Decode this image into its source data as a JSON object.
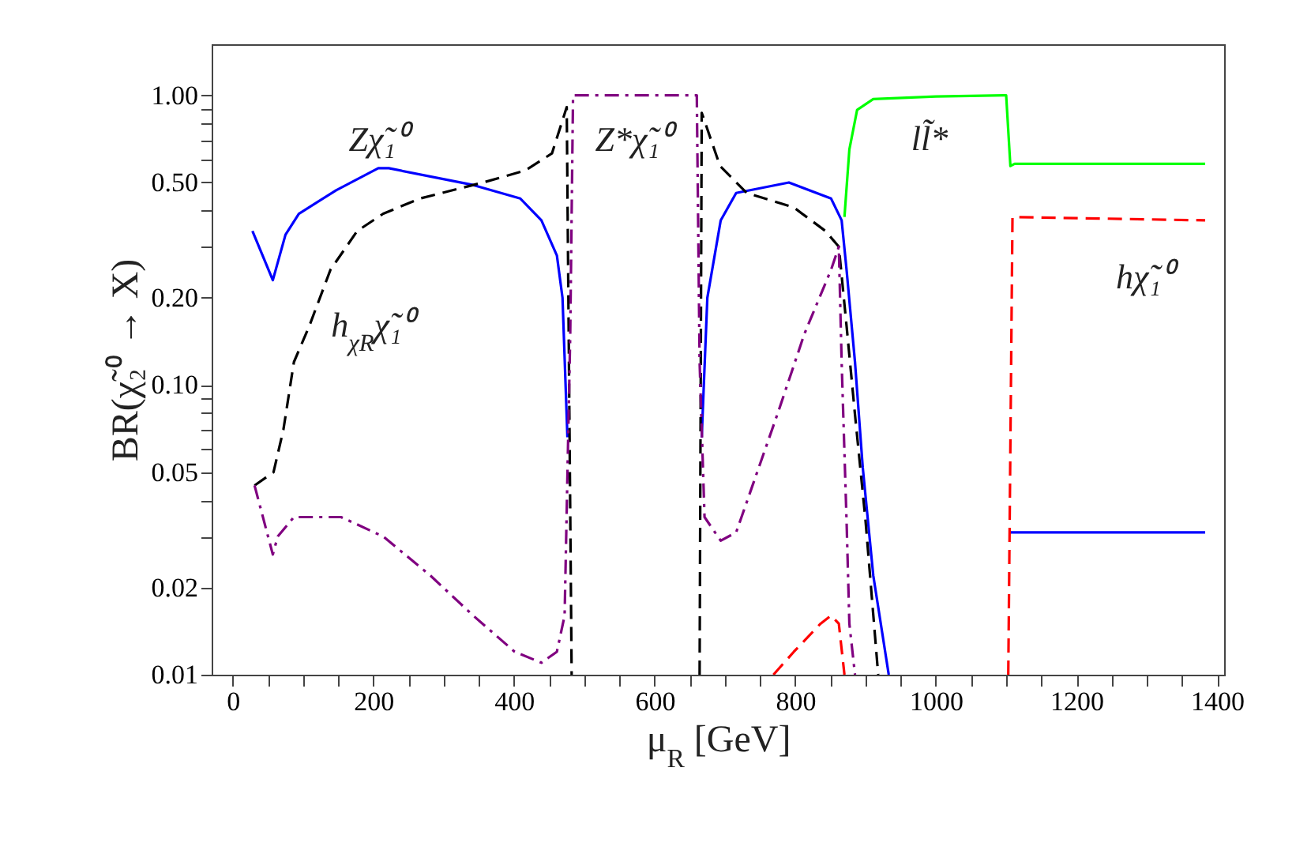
{
  "chart_data": {
    "type": "line",
    "xlabel": "μ$_{R}$ [GeV]",
    "ylabel": "BR(χ̃₂⁰ → X)",
    "log": "y",
    "grid": false,
    "marker": "none",
    "xlim": [
      -30,
      1410
    ],
    "ylim": [
      0.01,
      1.5
    ],
    "xticks": [
      0,
      {
        "value": 50,
        "label": null
      },
      {
        "value": 100,
        "label": null
      },
      {
        "value": 150,
        "label": null
      },
      200,
      {
        "value": 250,
        "label": null
      },
      {
        "value": 300,
        "label": null
      },
      {
        "value": 350,
        "label": null
      },
      400,
      {
        "value": 450,
        "label": null
      },
      {
        "value": 500,
        "label": null
      },
      {
        "value": 550,
        "label": null
      },
      600,
      {
        "value": 650,
        "label": null
      },
      {
        "value": 700,
        "label": null
      },
      {
        "value": 750,
        "label": null
      },
      800,
      {
        "value": 850,
        "label": null
      },
      {
        "value": 900,
        "label": null
      },
      {
        "value": 950,
        "label": null
      },
      1000,
      {
        "value": 1050,
        "label": null
      },
      {
        "value": 1100,
        "label": null
      },
      {
        "value": 1150,
        "label": null
      },
      1200,
      {
        "value": 1250,
        "label": null
      },
      {
        "value": 1300,
        "label": null
      },
      {
        "value": 1350,
        "label": null
      },
      1400
    ],
    "yticks": [
      0.01,
      0.02,
      {
        "value": 0.03,
        "label": null
      },
      {
        "value": 0.04,
        "label": null
      },
      0.05,
      {
        "value": 0.06,
        "label": null
      },
      {
        "value": 0.07,
        "label": null
      },
      {
        "value": 0.08,
        "label": null
      },
      {
        "value": 0.09,
        "label": null
      },
      {
        "value": 0.1,
        "label": "0.10"
      },
      {
        "value": 0.2,
        "label": "0.20"
      },
      {
        "value": 0.3,
        "label": null
      },
      {
        "value": 0.4,
        "label": null
      },
      {
        "value": 0.5,
        "label": "0.50"
      },
      {
        "value": 0.6,
        "label": null
      },
      {
        "value": 0.7,
        "label": null
      },
      {
        "value": 0.8,
        "label": null
      },
      {
        "value": 0.9,
        "label": null
      },
      {
        "value": 1,
        "label": "1.00"
      }
    ],
    "series": [
      {
        "color": "#0000ff",
        "line_style": "solid",
        "x": [
          28,
          57,
          75,
          94,
          147,
          207,
          222,
          342,
          409,
          439,
          461,
          469,
          476,
          570,
          667,
          675,
          694,
          716,
          791,
          851,
          866,
          873,
          885,
          896,
          911,
          933,
          1020,
          1103,
          1105,
          1383
        ],
        "values": [
          0.34,
          0.23,
          0.33,
          0.39,
          0.47,
          0.56,
          0.56,
          0.49,
          0.44,
          0.37,
          0.28,
          0.2,
          0.066,
          null,
          0.066,
          0.2,
          0.37,
          0.46,
          0.5,
          0.44,
          0.37,
          0.25,
          0.12,
          0.052,
          0.022,
          0.01,
          null,
          null,
          0.031,
          0.031
        ]
      },
      {
        "color": "#000000",
        "line_style": "dashed",
        "x": [
          31,
          58,
          72,
          87,
          109,
          139,
          177,
          214,
          266,
          356,
          416,
          454,
          475,
          482,
          570,
          664,
          667,
          693,
          731,
          798,
          843,
          862,
          873,
          885,
          900,
          918
        ],
        "values": [
          0.045,
          0.05,
          0.07,
          0.12,
          0.16,
          0.25,
          0.34,
          0.39,
          0.44,
          0.5,
          0.55,
          0.63,
          0.91,
          0.01,
          null,
          0.01,
          0.87,
          0.57,
          0.46,
          0.41,
          0.34,
          0.3,
          0.16,
          0.079,
          0.034,
          0.01
        ]
      },
      {
        "color": "#800080",
        "line_style": "dashdot",
        "x": [
          31,
          57,
          64,
          87,
          109,
          154,
          214,
          281,
          342,
          401,
          439,
          461,
          472,
          480,
          484,
          660,
          664,
          671,
          694,
          716,
          776,
          813,
          851,
          862,
          866,
          873,
          877,
          885
        ],
        "values": [
          0.045,
          0.026,
          0.03,
          0.035,
          0.035,
          0.035,
          0.03,
          0.022,
          0.016,
          0.012,
          0.011,
          0.012,
          0.016,
          0.15,
          1,
          1,
          0.12,
          0.035,
          0.029,
          0.031,
          0.081,
          0.15,
          0.25,
          0.3,
          0.12,
          0.034,
          0.015,
          0.01
        ]
      },
      {
        "color": "#ff0000",
        "line_style": "dashed",
        "x": [
          769,
          798,
          836,
          851,
          862,
          870,
          990,
          1103,
          1109,
          1383
        ],
        "values": [
          0.01,
          0.012,
          0.015,
          0.016,
          0.015,
          0.01,
          null,
          0.01,
          0.38,
          0.37
        ]
      },
      {
        "color": "#00ff00",
        "line_style": "solid",
        "x": [
          870,
          877,
          888,
          911,
          1000,
          1100,
          1106,
          1112,
          1383
        ],
        "values": [
          0.38,
          0.65,
          0.89,
          0.97,
          0.99,
          1,
          0.57,
          0.58,
          0.58
        ]
      }
    ],
    "annotations": [
      {
        "text": "Zχ̃₁⁰",
        "x": 207,
        "y": 0.56
      },
      {
        "text": "Z*χ̃₁⁰",
        "x": 570,
        "y": 1
      },
      {
        "text": "h$_{χR}$χ̃₁⁰",
        "x": 109,
        "y": 0.16
      },
      {
        "text": "ll̃*",
        "x": 1000,
        "y": 0.99
      },
      {
        "text": "hχ̃₁⁰",
        "x": 1297,
        "y": 0.37
      }
    ]
  }
}
